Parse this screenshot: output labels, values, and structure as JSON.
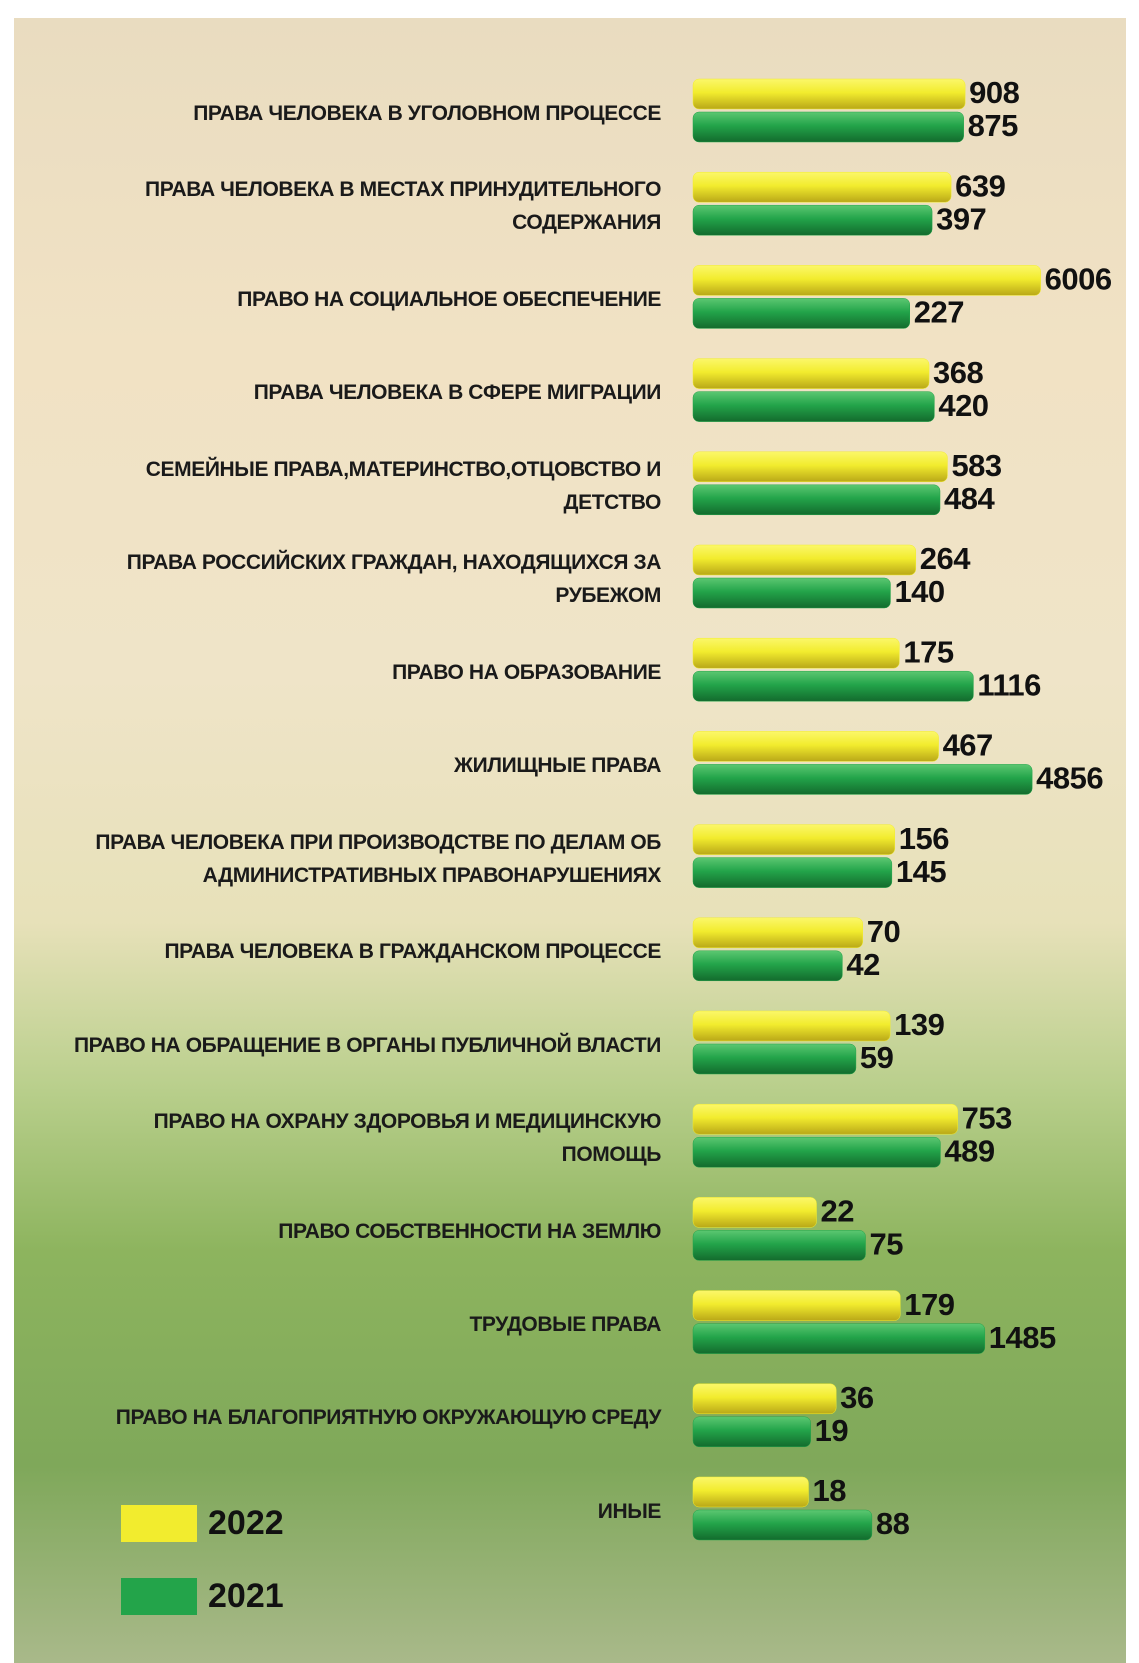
{
  "chart_data": {
    "type": "bar",
    "orientation": "horizontal",
    "log_scale": true,
    "xlim": [
      1,
      10000
    ],
    "categories": [
      "ПРАВА ЧЕЛОВЕКА В УГОЛОВНОМ ПРОЦЕССЕ",
      "ПРАВА ЧЕЛОВЕКА В МЕСТАХ ПРИНУДИТЕЛЬНОГО СОДЕРЖАНИЯ",
      "ПРАВО НА СОЦИАЛЬНОЕ ОБЕСПЕЧЕНИЕ",
      "ПРАВА ЧЕЛОВЕКА В СФЕРЕ МИГРАЦИИ",
      "СЕМЕЙНЫЕ ПРАВА,МАТЕРИНСТВО,ОТЦОВСТВО И ДЕТСТВО",
      "ПРАВА РОССИЙСКИХ ГРАЖДАН, НАХОДЯЩИХСЯ ЗА РУБЕЖОМ",
      "ПРАВО НА ОБРАЗОВАНИЕ",
      "ЖИЛИЩНЫЕ ПРАВА",
      "ПРАВА ЧЕЛОВЕКА ПРИ ПРОИЗВОДСТВЕ ПО ДЕЛАМ ОБ АДМИНИСТРАТИВНЫХ ПРАВОНАРУШЕНИЯХ",
      "ПРАВА ЧЕЛОВЕКА В ГРАЖДАНСКОМ ПРОЦЕССЕ",
      "ПРАВО НА ОБРАЩЕНИЕ В ОРГАНЫ ПУБЛИЧНОЙ ВЛАСТИ",
      "ПРАВО НА ОХРАНУ ЗДОРОВЬЯ И МЕДИЦИНСКУЮ ПОМОЩЬ",
      "ПРАВО СОБСТВЕННОСТИ НА ЗЕМЛЮ",
      "ТРУДОВЫЕ ПРАВА",
      "ПРАВО НА БЛАГОПРИЯТНУЮ ОКРУЖАЮЩУЮ СРЕДУ",
      "ИНЫЕ"
    ],
    "series": [
      {
        "name": "2022",
        "color": "#f2ec2e",
        "values": [
          908,
          639,
          6006,
          368,
          583,
          264,
          175,
          467,
          156,
          70,
          139,
          753,
          22,
          179,
          36,
          18
        ]
      },
      {
        "name": "2021",
        "color": "#23a44a",
        "values": [
          875,
          397,
          227,
          420,
          484,
          140,
          1116,
          4856,
          145,
          42,
          59,
          489,
          75,
          1485,
          19,
          88
        ]
      }
    ]
  }
}
